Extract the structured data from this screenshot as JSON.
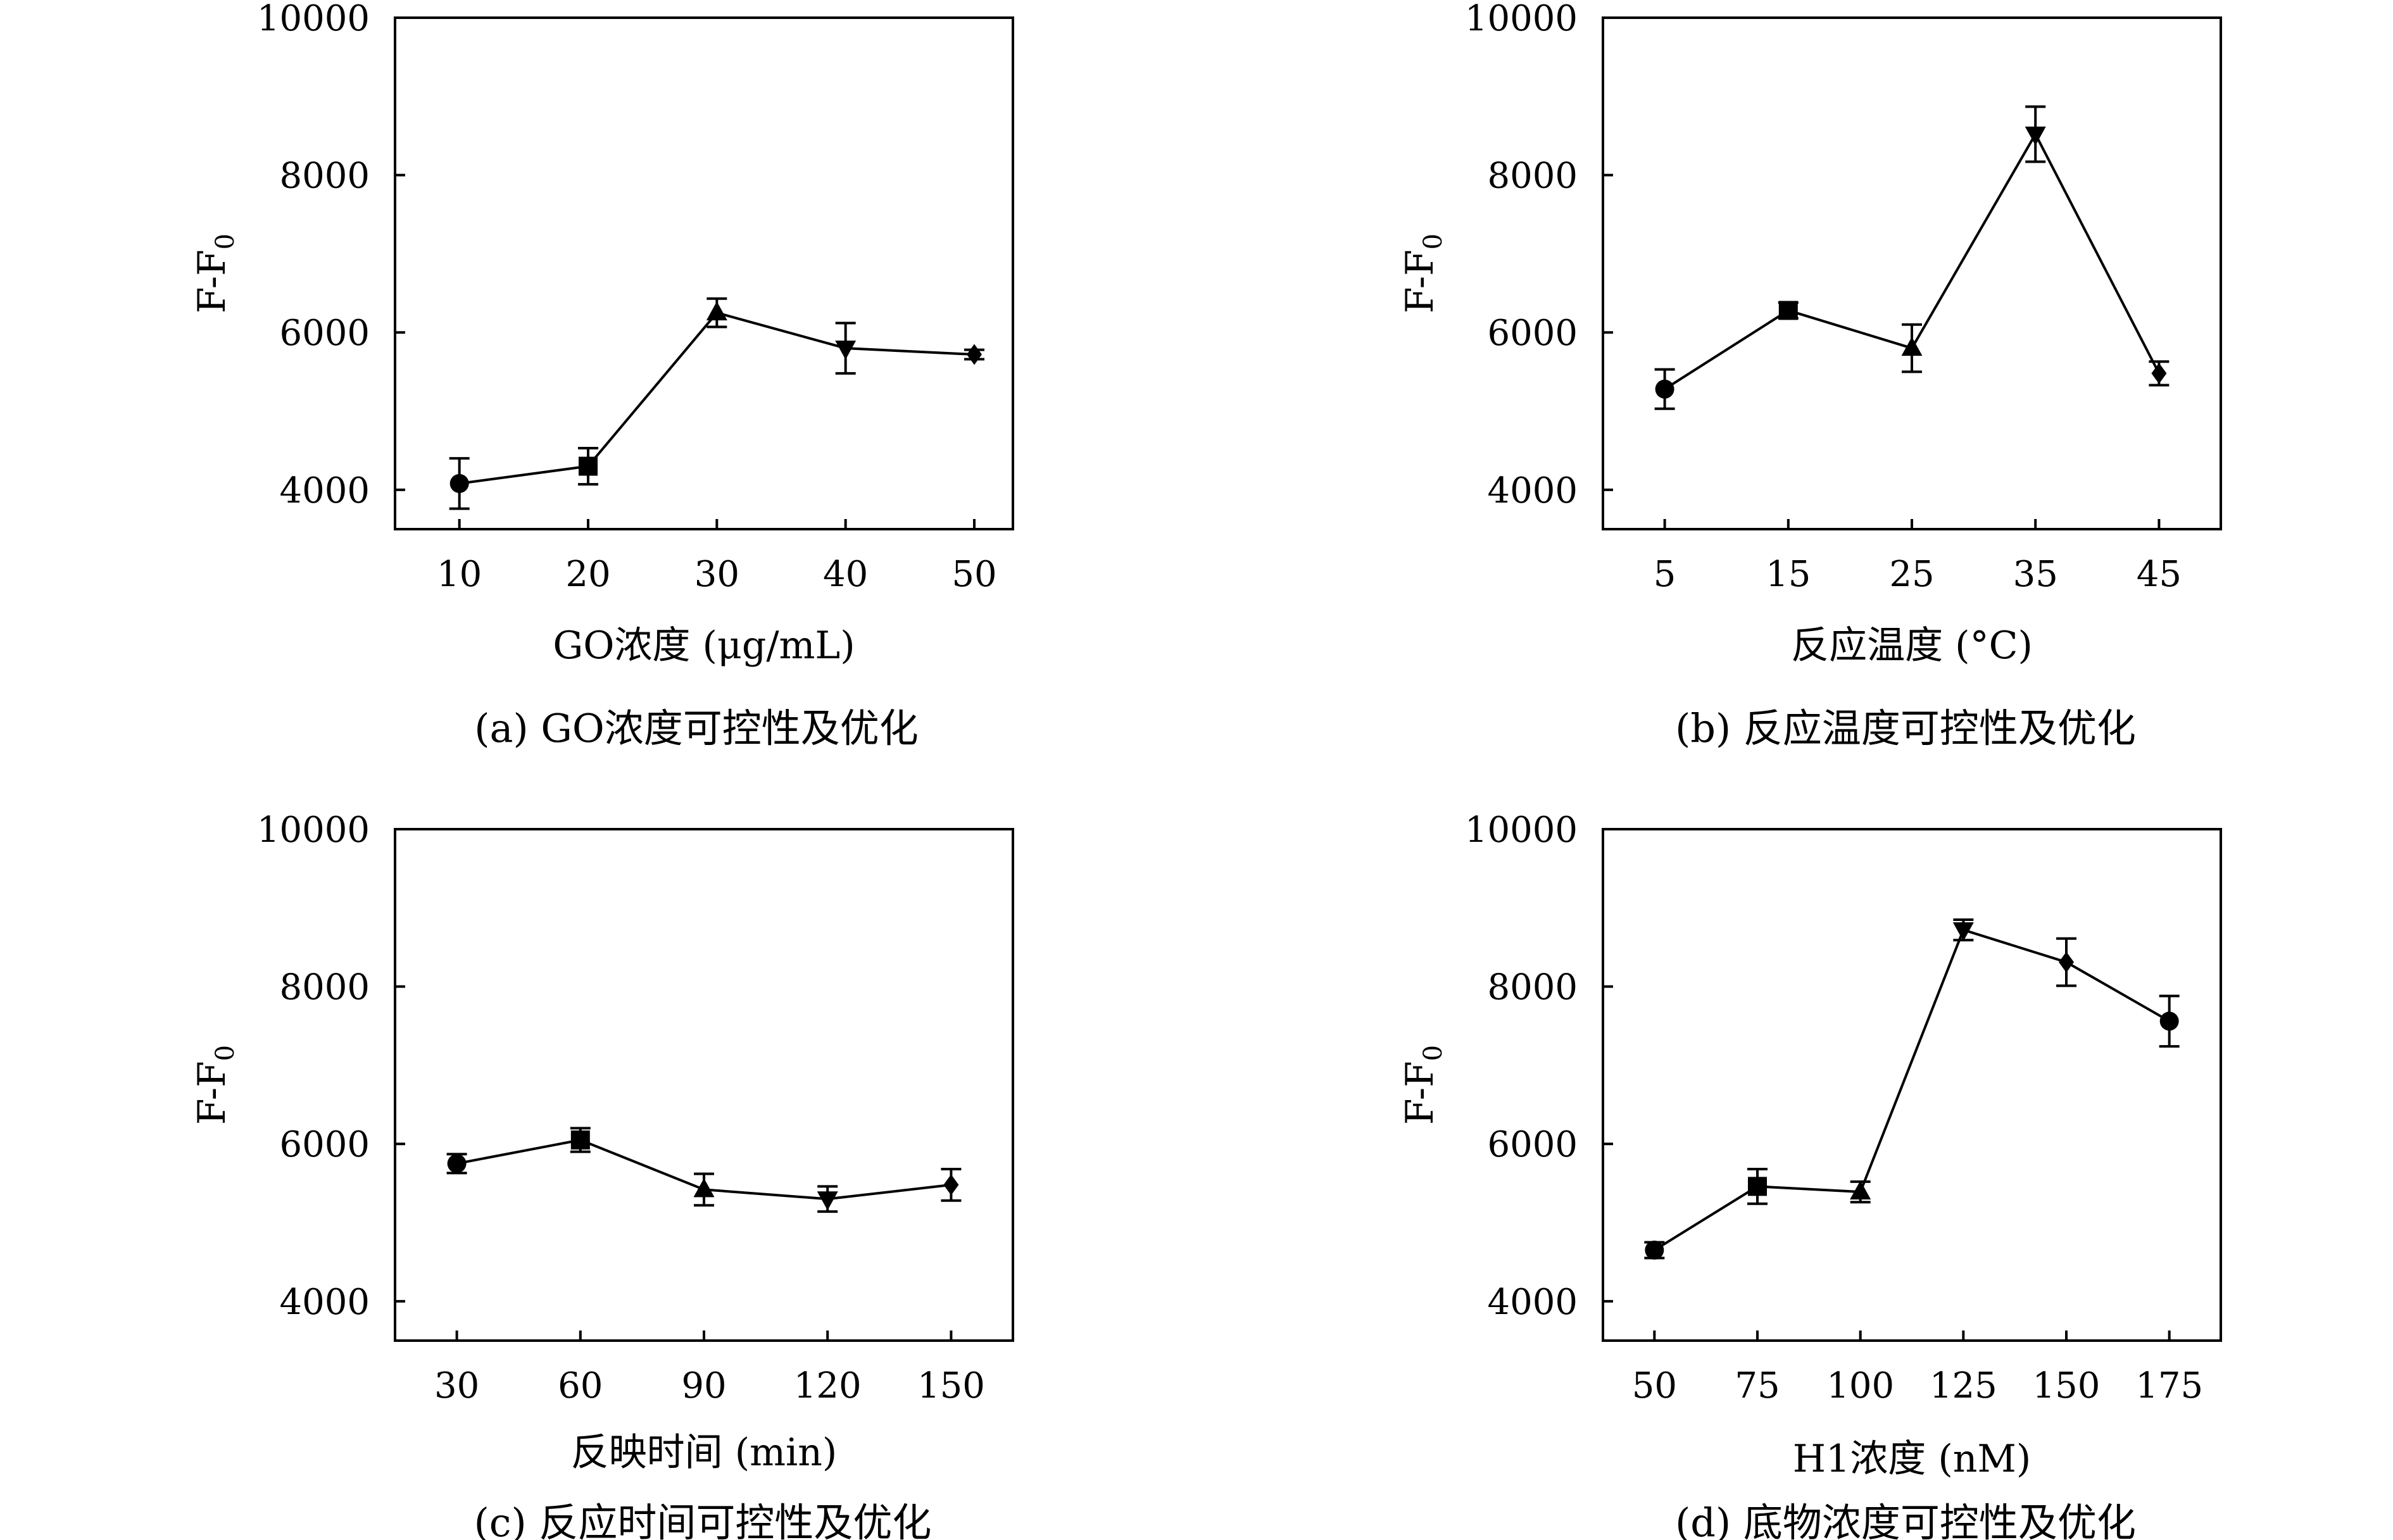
{
  "figure": {
    "panels": [
      {
        "id": "a",
        "caption": "(a) GO浓度可控性及优化",
        "xlabel": "GO浓度 (μg/mL)",
        "ylabel": "F-F",
        "ylabel_sub": "0"
      },
      {
        "id": "b",
        "caption": "(b) 反应温度可控性及优化",
        "xlabel": "反应温度 (°C)",
        "ylabel": "F-F",
        "ylabel_sub": "0"
      },
      {
        "id": "c",
        "caption": "(c) 反应时间可控性及优化",
        "xlabel": "反映时间 (min)",
        "ylabel": "F-F",
        "ylabel_sub": "0"
      },
      {
        "id": "d",
        "caption": "(d) 底物浓度可控性及优化",
        "xlabel": "H1浓度 (nM)",
        "ylabel": "F-F",
        "ylabel_sub": "0"
      }
    ]
  },
  "chart_data": [
    {
      "type": "line",
      "title": "",
      "xlabel": "GO浓度 (μg/mL)",
      "ylabel": "F-F0",
      "x": [
        10,
        20,
        30,
        40,
        50
      ],
      "xticks": [
        10,
        20,
        30,
        40,
        50
      ],
      "xlim": [
        5,
        53
      ],
      "ylim": [
        3500,
        10000
      ],
      "yticks": [
        4000,
        6000,
        8000,
        10000
      ],
      "grid": false,
      "series": [
        {
          "values": [
            4080,
            4300,
            6250,
            5800,
            5720
          ],
          "errors": [
            320,
            230,
            180,
            320,
            60
          ],
          "markers": [
            "circle",
            "square",
            "triangle-up",
            "triangle-down",
            "diamond"
          ]
        }
      ]
    },
    {
      "type": "line",
      "title": "",
      "xlabel": "反应温度 (°C)",
      "ylabel": "F-F0",
      "x": [
        5,
        15,
        25,
        35,
        45
      ],
      "xticks": [
        5,
        15,
        25,
        35,
        45
      ],
      "xlim": [
        0,
        50
      ],
      "ylim": [
        3500,
        10000
      ],
      "yticks": [
        4000,
        6000,
        8000,
        10000
      ],
      "grid": false,
      "series": [
        {
          "values": [
            5280,
            6280,
            5800,
            8520,
            5480
          ],
          "errors": [
            250,
            100,
            300,
            350,
            150
          ],
          "markers": [
            "circle",
            "square",
            "triangle-up",
            "triangle-down",
            "diamond"
          ]
        }
      ]
    },
    {
      "type": "line",
      "title": "",
      "xlabel": "反映时间 (min)",
      "ylabel": "F-F0",
      "x": [
        30,
        60,
        90,
        120,
        150
      ],
      "xticks": [
        30,
        60,
        90,
        120,
        150
      ],
      "xlim": [
        15,
        165
      ],
      "ylim": [
        3500,
        10000
      ],
      "yticks": [
        4000,
        6000,
        8000,
        10000
      ],
      "grid": false,
      "series": [
        {
          "values": [
            5750,
            6050,
            5420,
            5300,
            5480
          ],
          "errors": [
            120,
            150,
            200,
            160,
            200
          ],
          "markers": [
            "circle",
            "square",
            "triangle-up",
            "triangle-down",
            "diamond"
          ]
        }
      ]
    },
    {
      "type": "line",
      "title": "",
      "xlabel": "H1浓度 (nM)",
      "ylabel": "F-F0",
      "x": [
        50,
        75,
        100,
        125,
        150,
        175
      ],
      "xticks": [
        50,
        75,
        100,
        125,
        150,
        175
      ],
      "xlim": [
        37.5,
        187.5
      ],
      "ylim": [
        3500,
        10000
      ],
      "yticks": [
        4000,
        6000,
        8000,
        10000
      ],
      "grid": false,
      "series": [
        {
          "values": [
            4650,
            5460,
            5390,
            8720,
            8310,
            7560
          ],
          "errors": [
            100,
            220,
            130,
            130,
            300,
            320
          ],
          "markers": [
            "circle",
            "square",
            "triangle-up",
            "triangle-down",
            "diamond",
            "circle"
          ]
        }
      ]
    }
  ]
}
